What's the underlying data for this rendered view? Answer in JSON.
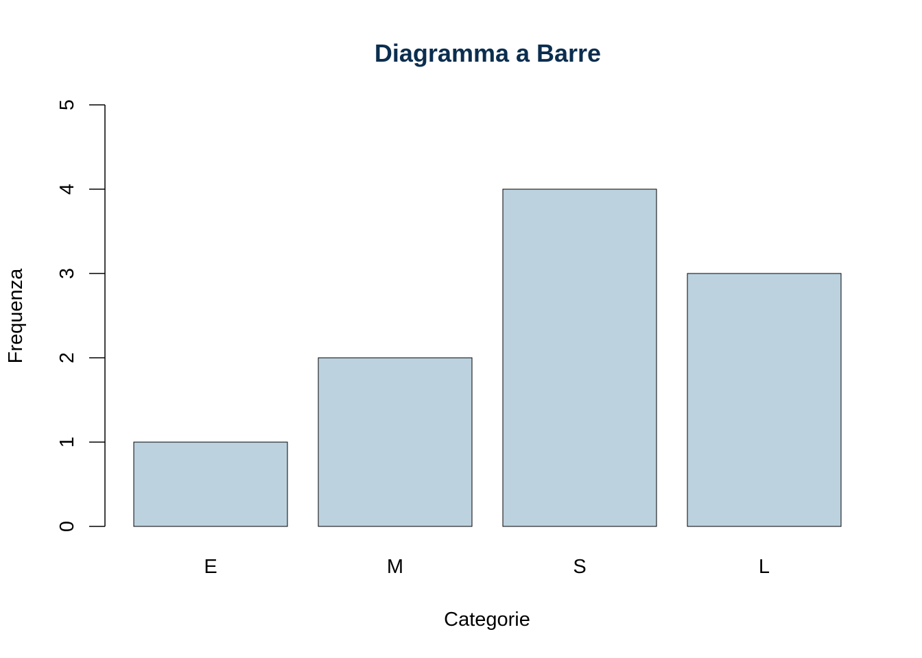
{
  "chart_data": {
    "type": "bar",
    "title": "Diagramma a Barre",
    "xlabel": "Categorie",
    "ylabel": "Frequenza",
    "categories": [
      "E",
      "M",
      "S",
      "L"
    ],
    "values": [
      1,
      2,
      4,
      3
    ],
    "ylim": [
      0,
      5
    ],
    "yticks": [
      "0",
      "1",
      "2",
      "3",
      "4",
      "5"
    ],
    "grid": false,
    "legend": "none"
  },
  "colors": {
    "title": "#0b2e4f",
    "bar_fill": "#bcd2df",
    "bar_stroke": "#000000",
    "axis": "#000000"
  }
}
